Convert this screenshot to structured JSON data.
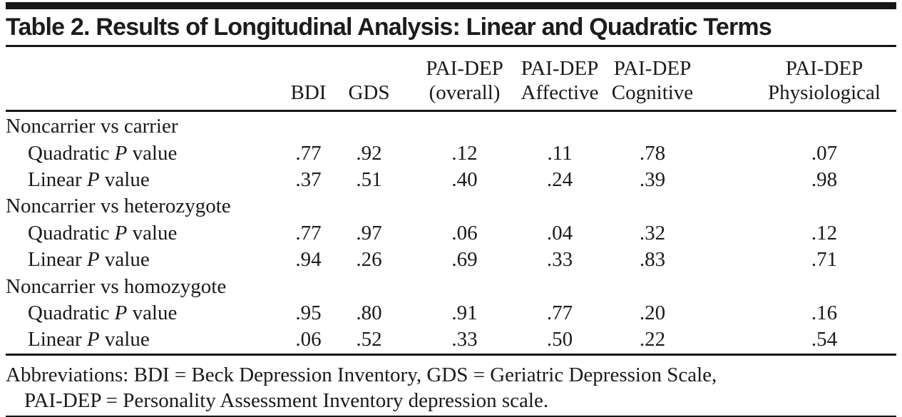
{
  "heading": "Table 2. Results of Longitudinal Analysis: Linear and Quadratic Terms",
  "table": {
    "columns": [
      {
        "line1": "",
        "line2": "BDI"
      },
      {
        "line1": "",
        "line2": "GDS"
      },
      {
        "line1": "PAI-DEP",
        "line2": "(overall)"
      },
      {
        "line1": "PAI-DEP",
        "line2": "Affective"
      },
      {
        "line1": "PAI-DEP",
        "line2": "Cognitive"
      },
      {
        "line1": "PAI-DEP",
        "line2": "Physiological"
      }
    ],
    "rows": [
      {
        "type": "group",
        "label": "Noncarrier vs carrier"
      },
      {
        "type": "data",
        "label_pre": "Quadratic",
        "label_italic": "P",
        "label_post": "value",
        "values": [
          ".77",
          ".92",
          ".12",
          ".11",
          ".78",
          ".07"
        ]
      },
      {
        "type": "data",
        "label_pre": "Linear",
        "label_italic": "P",
        "label_post": "value",
        "values": [
          ".37",
          ".51",
          ".40",
          ".24",
          ".39",
          ".98"
        ]
      },
      {
        "type": "group",
        "label": "Noncarrier vs heterozygote"
      },
      {
        "type": "data",
        "label_pre": "Quadratic",
        "label_italic": "P",
        "label_post": "value",
        "values": [
          ".77",
          ".97",
          ".06",
          ".04",
          ".32",
          ".12"
        ]
      },
      {
        "type": "data",
        "label_pre": "Linear",
        "label_italic": "P",
        "label_post": "value",
        "values": [
          ".94",
          ".26",
          ".69",
          ".33",
          ".83",
          ".71"
        ]
      },
      {
        "type": "group",
        "label": "Noncarrier vs homozygote"
      },
      {
        "type": "data",
        "label_pre": "Quadratic",
        "label_italic": "P",
        "label_post": "value",
        "values": [
          ".95",
          ".80",
          ".91",
          ".77",
          ".20",
          ".16"
        ]
      },
      {
        "type": "data",
        "label_pre": "Linear",
        "label_italic": "P",
        "label_post": "value",
        "values": [
          ".06",
          ".52",
          ".33",
          ".50",
          ".22",
          ".54"
        ]
      }
    ]
  },
  "footnote": {
    "line1": "Abbreviations: BDI = Beck Depression Inventory, GDS = Geriatric Depression Scale,",
    "line2": "PAI-DEP = Personality Assessment Inventory depression scale."
  }
}
